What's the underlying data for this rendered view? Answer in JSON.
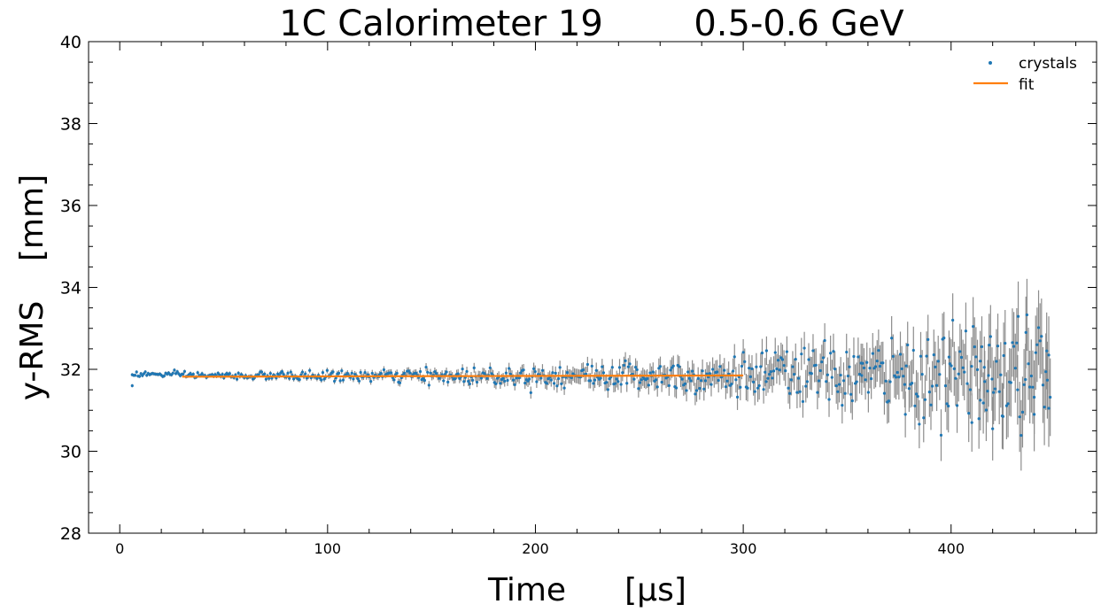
{
  "chart_data": {
    "type": "scatter",
    "title_left": "1C Calorimeter 19",
    "title_right": "0.5-0.6 GeV",
    "xlabel_main": "Time",
    "xlabel_unit": "[μs]",
    "ylabel_main": "y-RMS",
    "ylabel_unit": "[mm]",
    "xlim": [
      -15,
      470
    ],
    "ylim": [
      28,
      40
    ],
    "xticks": [
      0,
      100,
      200,
      300,
      400
    ],
    "xtick_labels": [
      "0",
      "100",
      "200",
      "300",
      "400"
    ],
    "yticks": [
      28,
      30,
      32,
      34,
      36,
      38,
      40
    ],
    "ytick_labels": [
      "28",
      "30",
      "32",
      "34",
      "36",
      "38",
      "40"
    ],
    "x_minor_step": 20,
    "y_minor_step": 0.5,
    "grid": false,
    "legend_position": "top-right",
    "legend": [
      "crystals",
      "fit"
    ],
    "colors": {
      "crystals": "#1f77b4",
      "fit": "#ff7f0e",
      "errorbar": "#8c8c8c",
      "axes": "#000000"
    },
    "series": [
      {
        "name": "crystals",
        "kind": "points_with_errorbars",
        "x_start": 6.0,
        "x_end": 448.0,
        "x_step": 0.7,
        "mean_profile": [
          {
            "x": 6,
            "y": 31.88
          },
          {
            "x": 15,
            "y": 31.88
          },
          {
            "x": 25,
            "y": 31.87
          },
          {
            "x": 50,
            "y": 31.84
          },
          {
            "x": 100,
            "y": 31.84
          },
          {
            "x": 150,
            "y": 31.83
          },
          {
            "x": 200,
            "y": 31.84
          },
          {
            "x": 250,
            "y": 31.85
          },
          {
            "x": 300,
            "y": 31.86
          },
          {
            "x": 350,
            "y": 31.86
          },
          {
            "x": 400,
            "y": 31.85
          },
          {
            "x": 448,
            "y": 31.85
          }
        ],
        "error_profile": [
          {
            "x": 6,
            "y": 0.04
          },
          {
            "x": 50,
            "y": 0.05
          },
          {
            "x": 100,
            "y": 0.07
          },
          {
            "x": 150,
            "y": 0.1
          },
          {
            "x": 200,
            "y": 0.15
          },
          {
            "x": 250,
            "y": 0.22
          },
          {
            "x": 300,
            "y": 0.32
          },
          {
            "x": 350,
            "y": 0.45
          },
          {
            "x": 400,
            "y": 0.65
          },
          {
            "x": 448,
            "y": 0.95
          }
        ],
        "highlighted_points": [
          {
            "x": 6,
            "y": 31.6
          },
          {
            "x": 311,
            "y": 31.7
          },
          {
            "x": 357,
            "y": 31.85
          },
          {
            "x": 378,
            "y": 30.9
          },
          {
            "x": 399,
            "y": 32.3
          },
          {
            "x": 410,
            "y": 30.7
          },
          {
            "x": 414,
            "y": 32.2
          },
          {
            "x": 416,
            "y": 32.05
          },
          {
            "x": 418,
            "y": 31.85
          },
          {
            "x": 420,
            "y": 30.55
          },
          {
            "x": 425,
            "y": 30.85
          },
          {
            "x": 432,
            "y": 31.5
          },
          {
            "x": 436,
            "y": 32.9
          },
          {
            "x": 440,
            "y": 30.9
          },
          {
            "x": 446,
            "y": 32.45
          },
          {
            "x": 447,
            "y": 31.05
          }
        ]
      },
      {
        "name": "fit",
        "kind": "line",
        "x": [
          30,
          300
        ],
        "y": [
          31.82,
          31.85
        ]
      }
    ]
  }
}
